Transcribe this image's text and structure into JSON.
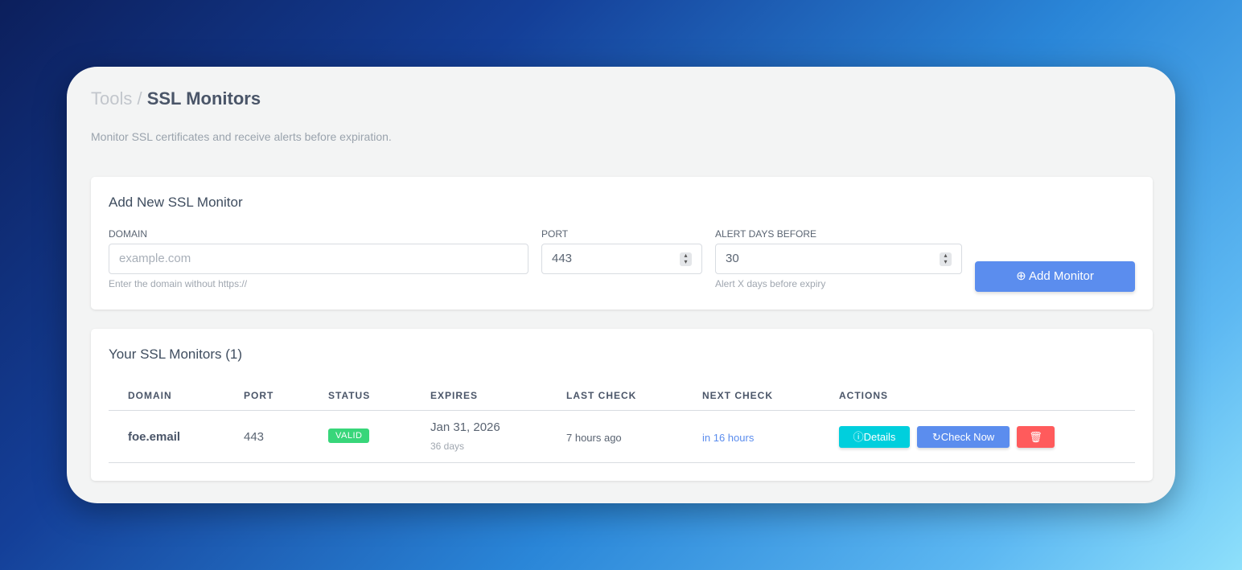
{
  "breadcrumb": {
    "parent": "Tools",
    "separator": " / ",
    "current": "SSL Monitors"
  },
  "subtitle": "Monitor SSL certificates and receive alerts before expiration.",
  "form": {
    "title": "Add New SSL Monitor",
    "domain_label": "DOMAIN",
    "domain_placeholder": "example.com",
    "domain_help": "Enter the domain without https://",
    "port_label": "PORT",
    "port_value": "443",
    "alert_label": "ALERT DAYS BEFORE",
    "alert_value": "30",
    "alert_help": "Alert X days before expiry",
    "add_button": "Add Monitor"
  },
  "monitors": {
    "title": "Your SSL Monitors (1)",
    "columns": [
      "DOMAIN",
      "PORT",
      "STATUS",
      "EXPIRES",
      "LAST CHECK",
      "NEXT CHECK",
      "ACTIONS"
    ],
    "rows": [
      {
        "domain": "foe.email",
        "port": "443",
        "status": "VALID",
        "expires": "Jan 31, 2026",
        "expires_in": "36 days",
        "last_check": "7 hours ago",
        "next_check": "in 16 hours",
        "details": "Details",
        "check_now": "Check Now"
      }
    ]
  },
  "colors": {
    "primary": "#5b8dee",
    "info": "#00cfdd",
    "danger": "#ff5b5c",
    "success": "#38d67a"
  }
}
